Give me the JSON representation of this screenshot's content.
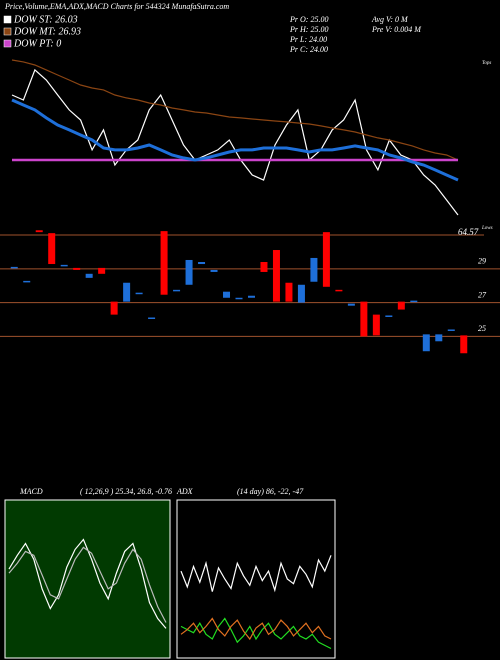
{
  "header": {
    "title": "Price,Volume,EMA,ADX,MACD Charts for 544324  MunafaSutra.com",
    "quote": [
      "Pr O: 25.00",
      "Pr H: 25.00",
      "Pr L: 24.00",
      "Pr C: 24.00"
    ],
    "volume": [
      "Avg V: 0 M",
      "Pre V: 0.004 M"
    ],
    "tops": "Tops",
    "lows": "Lows"
  },
  "chart_data": [
    {
      "type": "line",
      "ylim": [
        0,
        100
      ],
      "series": [
        {
          "name": "DOW ST: 26.03",
          "color": "#ffffff",
          "values": [
            78.1,
            75,
            93.8,
            87.5,
            78.1,
            68.8,
            62.5,
            43.8,
            56.3,
            34.4,
            43.8,
            50,
            68.8,
            78.1,
            62.5,
            46.9,
            37.5,
            40.6,
            43.8,
            50,
            37.5,
            28.1,
            25,
            46.9,
            59.4,
            68.8,
            37.5,
            43.8,
            56.3,
            62.5,
            75,
            43.8,
            31.3,
            50,
            40.6,
            37.5,
            28.1,
            21.9,
            12.5,
            3.1
          ]
        },
        {
          "name": "DOW MT: 26.93",
          "color": "#8b4513",
          "values": [
            100,
            98.8,
            96.9,
            93.8,
            90.6,
            87.5,
            84.4,
            82.5,
            81.3,
            78.1,
            76.3,
            75,
            73.1,
            71.9,
            70,
            68.8,
            67.5,
            66.9,
            65.6,
            64.4,
            63.8,
            63.1,
            62.5,
            61.9,
            61.3,
            60.6,
            60,
            58.8,
            57.5,
            56.3,
            55,
            53.1,
            51.3,
            50,
            48.1,
            46.3,
            43.8,
            41.9,
            40.6,
            37.5
          ]
        },
        {
          "name": "DOW PT: 0",
          "color": "#cc44cc",
          "values": [
            37.5,
            37.5,
            37.5,
            37.5,
            37.5,
            37.5,
            37.5,
            37.5,
            37.5,
            37.5,
            37.5,
            37.5,
            37.5,
            37.5,
            37.5,
            37.5,
            37.5,
            37.5,
            37.5,
            37.5,
            37.5,
            37.5,
            37.5,
            37.5,
            37.5,
            37.5,
            37.5,
            37.5,
            37.5,
            37.5,
            37.5,
            37.5,
            37.5,
            37.5,
            37.5,
            37.5,
            37.5,
            37.5,
            37.5,
            37.5
          ]
        },
        {
          "color": "#1e6fd9",
          "values": [
            75,
            71.9,
            68.8,
            63.8,
            59.4,
            56.3,
            53.1,
            50,
            45,
            43.8,
            43.8,
            45,
            46.9,
            43.8,
            40.6,
            38.8,
            37.5,
            38.8,
            40.6,
            42.5,
            43.8,
            43.8,
            45,
            45,
            45,
            43.8,
            42.5,
            43.8,
            43.8,
            45,
            46.3,
            45,
            43.8,
            40.6,
            38.8,
            36.3,
            34.4,
            31.3,
            28.1,
            25
          ]
        }
      ]
    },
    {
      "type": "candlestick",
      "ylim": [
        23.6,
        31.9
      ],
      "yticks": [
        29,
        27,
        25
      ],
      "annotation": "64.57",
      "open": [
        29.06,
        28.24,
        31.29,
        31.12,
        29.18,
        29.06,
        28.47,
        29.06,
        27.06,
        27.06,
        27.53,
        26.06,
        31.24,
        27.71,
        28.06,
        29.29,
        28.82,
        27.29,
        27.24,
        27.29,
        29.41,
        30.12,
        28.18,
        27,
        28.24,
        31.18,
        27.76,
        26.82,
        27.06,
        26.29,
        26.18,
        27.06,
        27.06,
        24.12,
        24.71,
        25.35,
        25.06
      ],
      "close": [
        29.12,
        28.29,
        31.18,
        29.29,
        29.24,
        28.94,
        28.71,
        28.71,
        26.29,
        28.18,
        27.59,
        26.12,
        27.47,
        27.76,
        29.53,
        29.41,
        28.94,
        27.65,
        27.29,
        27.41,
        28.82,
        27.06,
        27.06,
        28.06,
        29.65,
        27.94,
        27.71,
        26.94,
        25,
        25.06,
        26.24,
        26.59,
        27.12,
        25.12,
        25.12,
        25.41,
        24
      ]
    },
    {
      "type": "line",
      "title": "MACD",
      "subtitle": "( 12,26,9 ) 25.34, 26.8, -0.76",
      "ylim": [
        -4,
        4
      ],
      "series": [
        {
          "color": "#ffffff",
          "values": [
            0.5,
            1.2,
            1.8,
            1,
            -0.5,
            -1.5,
            -0.8,
            0.6,
            1.5,
            2,
            1,
            -0.2,
            -1,
            0.3,
            1.4,
            1.8,
            0.5,
            -1.2,
            -2,
            -2.5
          ]
        },
        {
          "color": "#bbbbbb",
          "values": [
            0.3,
            0.8,
            1.4,
            1.2,
            0.2,
            -0.8,
            -1,
            0,
            1,
            1.6,
            1.3,
            0.4,
            -0.5,
            -0.2,
            0.8,
            1.5,
            1,
            -0.3,
            -1.4,
            -2.2
          ]
        }
      ]
    },
    {
      "type": "line",
      "title": "ADX",
      "subtitle": "(14 day) 86, -22, -47",
      "ylim": [
        0,
        100
      ],
      "series": [
        {
          "color": "#ffffff",
          "values": [
            55,
            45,
            58,
            48,
            60,
            42,
            57,
            50,
            44,
            60,
            52,
            46,
            58,
            49,
            55,
            43,
            60,
            50,
            47,
            58,
            53,
            45,
            62,
            55,
            65
          ]
        },
        {
          "color": "#22dd22",
          "values": [
            20,
            18,
            16,
            22,
            15,
            12,
            20,
            25,
            18,
            10,
            14,
            20,
            12,
            18,
            22,
            15,
            12,
            16,
            20,
            14,
            12,
            15,
            10,
            8,
            6
          ]
        },
        {
          "color": "#e07020",
          "values": [
            15,
            18,
            22,
            16,
            20,
            25,
            18,
            14,
            20,
            24,
            17,
            12,
            19,
            22,
            15,
            18,
            24,
            20,
            14,
            18,
            22,
            16,
            20,
            14,
            12
          ]
        }
      ]
    }
  ]
}
